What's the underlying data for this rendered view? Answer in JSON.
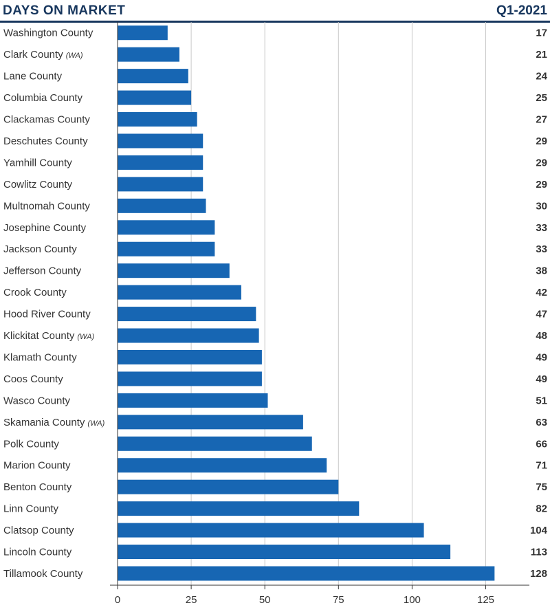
{
  "header": {
    "title": "DAYS ON MARKET",
    "period": "Q1-2021"
  },
  "colors": {
    "bar": "#1766b3",
    "grid": "#c8c8c8",
    "axis": "#333333",
    "title": "#17365d"
  },
  "chart_data": {
    "type": "bar",
    "orientation": "horizontal",
    "title": "DAYS ON MARKET",
    "subtitle": "Q1-2021",
    "xlabel": "",
    "ylabel": "",
    "xlim": [
      0,
      140
    ],
    "xticks": [
      0,
      25,
      50,
      75,
      100,
      125
    ],
    "grid": true,
    "categories": [
      {
        "name": "Washington County",
        "note": ""
      },
      {
        "name": "Clark County",
        "note": "(WA)"
      },
      {
        "name": "Lane County",
        "note": ""
      },
      {
        "name": "Columbia County",
        "note": ""
      },
      {
        "name": "Clackamas County",
        "note": ""
      },
      {
        "name": "Deschutes County",
        "note": ""
      },
      {
        "name": "Yamhill County",
        "note": ""
      },
      {
        "name": "Cowlitz County",
        "note": ""
      },
      {
        "name": "Multnomah County",
        "note": ""
      },
      {
        "name": "Josephine County",
        "note": ""
      },
      {
        "name": "Jackson County",
        "note": ""
      },
      {
        "name": "Jefferson County",
        "note": ""
      },
      {
        "name": "Crook County",
        "note": ""
      },
      {
        "name": "Hood River County",
        "note": ""
      },
      {
        "name": "Klickitat County",
        "note": "(WA)"
      },
      {
        "name": "Klamath County",
        "note": ""
      },
      {
        "name": "Coos County",
        "note": ""
      },
      {
        "name": "Wasco County",
        "note": ""
      },
      {
        "name": "Skamania County",
        "note": "(WA)"
      },
      {
        "name": "Polk County",
        "note": ""
      },
      {
        "name": "Marion County",
        "note": ""
      },
      {
        "name": "Benton County",
        "note": ""
      },
      {
        "name": "Linn County",
        "note": ""
      },
      {
        "name": "Clatsop County",
        "note": ""
      },
      {
        "name": "Lincoln County",
        "note": ""
      },
      {
        "name": "Tillamook County",
        "note": ""
      }
    ],
    "values": [
      17,
      21,
      24,
      25,
      27,
      29,
      29,
      29,
      30,
      33,
      33,
      38,
      42,
      47,
      48,
      49,
      49,
      51,
      63,
      66,
      71,
      75,
      82,
      104,
      113,
      128
    ]
  }
}
